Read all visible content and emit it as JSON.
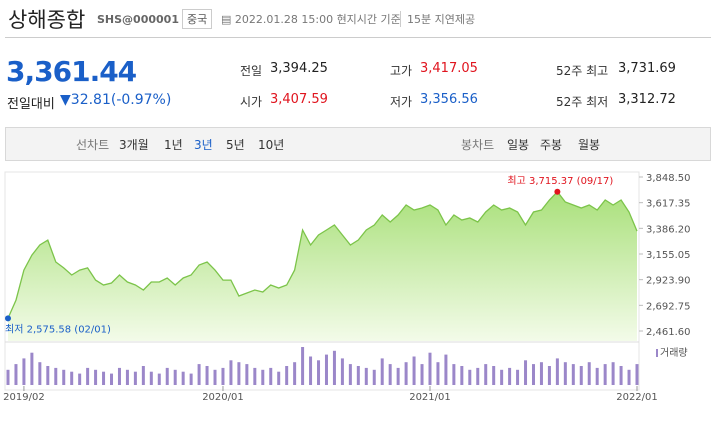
{
  "header": {
    "title": "상해종합",
    "code": "SHS@000001",
    "market": "중국",
    "datetime": "2022.01.28 15:00 현지시간 기준",
    "delay": "15분 지연제공"
  },
  "quote": {
    "price": "3,361.44",
    "change_label": "전일대비",
    "change": "32.81(-0.97%)",
    "stats": [
      {
        "label": "전일",
        "value": "3,394.25",
        "color": "#222"
      },
      {
        "label": "고가",
        "value": "3,417.05",
        "color": "#e0141e"
      },
      {
        "label": "52주 최고",
        "value": "3,731.69",
        "color": "#222"
      },
      {
        "label": "시가",
        "value": "3,407.59",
        "color": "#e0141e"
      },
      {
        "label": "저가",
        "value": "3,356.56",
        "color": "#1a5fc8"
      },
      {
        "label": "52주 최저",
        "value": "3,312.72",
        "color": "#222"
      }
    ]
  },
  "tabs": {
    "line_label": "선차트",
    "line_options": [
      "3개월",
      "1년",
      "3년",
      "5년",
      "10년"
    ],
    "selected": "3년",
    "candle_label": "봉차트",
    "candle_options": [
      "일봉",
      "주봉",
      "월봉"
    ]
  },
  "chart_data": [
    {
      "type": "area",
      "color": "#7cc44a",
      "categories": [
        null,
        null,
        "2019/02",
        null,
        null,
        null,
        null,
        null,
        null,
        null,
        null,
        null,
        null,
        null,
        null,
        null,
        null,
        null,
        null,
        null,
        null,
        null,
        null,
        null,
        null,
        null,
        null,
        "2020/01",
        null,
        null,
        null,
        null,
        null,
        null,
        null,
        null,
        null,
        null,
        null,
        null,
        null,
        null,
        null,
        null,
        null,
        null,
        null,
        null,
        null,
        null,
        null,
        null,
        null,
        "2021/01",
        null,
        null,
        null,
        null,
        null,
        null,
        null,
        null,
        null,
        null,
        null,
        null,
        null,
        null,
        null,
        null,
        null,
        null,
        null,
        null,
        null,
        null,
        null,
        null,
        null,
        "2022/01"
      ],
      "values": [
        2575.58,
        2740,
        3010,
        3145,
        3236,
        3280,
        3083,
        3030,
        2966,
        3010,
        3030,
        2920,
        2876,
        2894,
        2966,
        2903,
        2876,
        2831,
        2903,
        2903,
        2939,
        2876,
        2939,
        2966,
        3056,
        3083,
        3010,
        2920,
        2920,
        2777,
        2804,
        2831,
        2813,
        2876,
        2849,
        2876,
        3010,
        3371,
        3236,
        3326,
        3371,
        3416,
        3326,
        3236,
        3281,
        3371,
        3416,
        3506,
        3443,
        3506,
        3596,
        3551,
        3569,
        3596,
        3551,
        3416,
        3506,
        3461,
        3479,
        3443,
        3533,
        3596,
        3551,
        3569,
        3533,
        3416,
        3533,
        3551,
        3641,
        3715.37,
        3623,
        3596,
        3569,
        3596,
        3551,
        3641,
        3596,
        3641,
        3533,
        3361.44
      ],
      "ylim": [
        2461.6,
        3848.5
      ],
      "yticks": [
        {
          "value": 3848.5,
          "label": "3,848.50"
        },
        {
          "value": 3617.35,
          "label": "3,617.35"
        },
        {
          "value": 3386.2,
          "label": "3,386.20"
        },
        {
          "value": 3155.05,
          "label": "3,155.05"
        },
        {
          "value": 2923.9,
          "label": "2,923.90"
        },
        {
          "value": 2692.75,
          "label": "2,692.75"
        },
        {
          "value": 2461.6,
          "label": "2,461.60"
        }
      ],
      "annotations": [
        {
          "index": 69,
          "text": "최고 3,715.37 (09/17)",
          "color": "#e0141e"
        },
        {
          "index": 0,
          "text": "최저 2,575.58 (02/01)",
          "color": "#1a5fc8"
        }
      ]
    },
    {
      "type": "bar",
      "name": "거래량",
      "color": "#9b87c9",
      "values": [
        40,
        55,
        70,
        85,
        60,
        50,
        45,
        40,
        35,
        30,
        45,
        40,
        35,
        30,
        45,
        40,
        35,
        50,
        35,
        30,
        45,
        40,
        35,
        30,
        55,
        50,
        40,
        45,
        65,
        60,
        55,
        45,
        40,
        45,
        35,
        50,
        60,
        100,
        75,
        65,
        80,
        90,
        70,
        55,
        50,
        45,
        40,
        70,
        55,
        45,
        60,
        75,
        55,
        85,
        60,
        80,
        55,
        50,
        40,
        45,
        55,
        50,
        40,
        45,
        40,
        65,
        55,
        60,
        50,
        70,
        60,
        55,
        50,
        60,
        45,
        55,
        60,
        50,
        40,
        55
      ],
      "ylim": [
        0,
        100
      ]
    }
  ]
}
